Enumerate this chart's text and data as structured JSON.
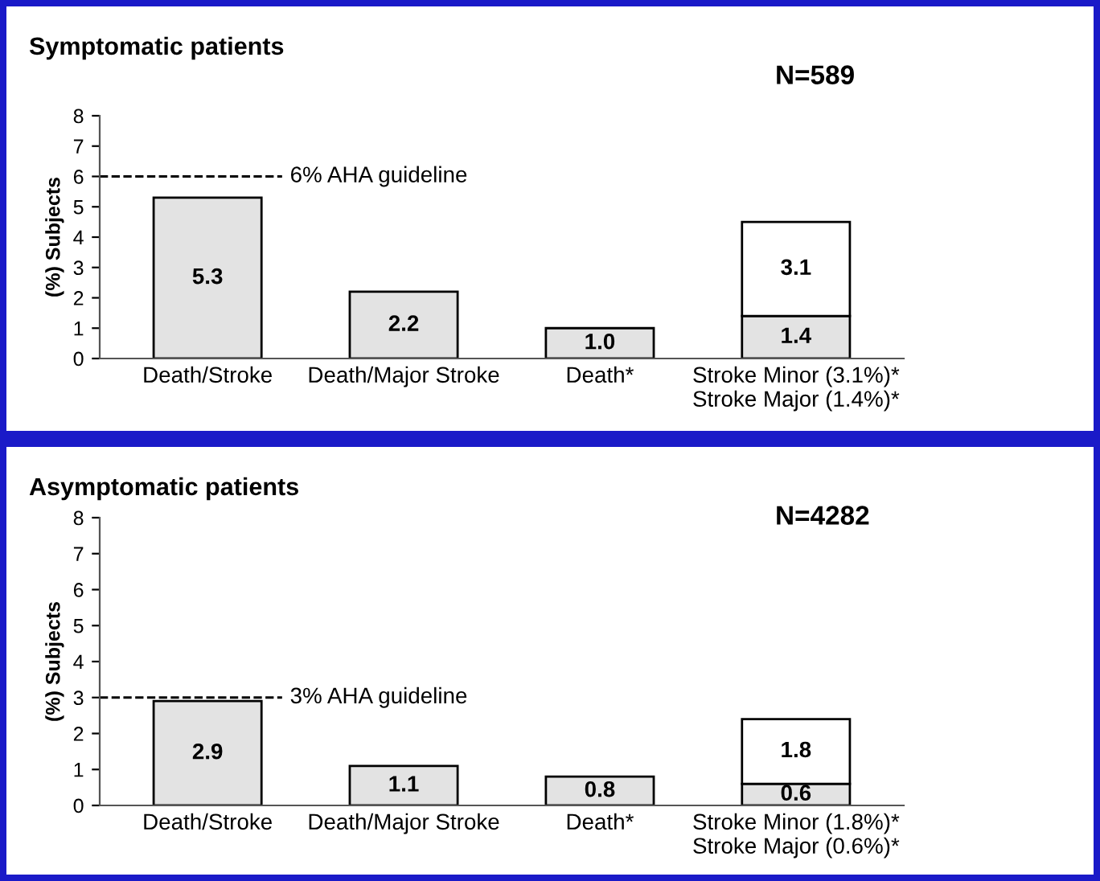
{
  "chart_data": [
    {
      "type": "bar",
      "title": "Symptomatic patients",
      "ylabel": "(%) Subjects",
      "annotations": [
        "N=589"
      ],
      "categories": [
        "Death/Stroke",
        "Death/Major Stroke",
        "Death*",
        "Stroke Minor (3.1%)*\nStroke Major (1.4%)*"
      ],
      "stacked": true,
      "series": [
        {
          "color": "#e3e3e3",
          "values": [
            5.3,
            2.2,
            1.0,
            1.4
          ],
          "value_labels": [
            "5.3",
            "2.2",
            "1.0",
            "1.4"
          ]
        },
        {
          "color": "#ffffff",
          "values": [
            null,
            null,
            null,
            3.1
          ],
          "value_labels": [
            null,
            null,
            null,
            "3.1"
          ]
        }
      ],
      "ylim": [
        0,
        8
      ],
      "yticks": [
        0,
        1,
        2,
        3,
        4,
        5,
        6,
        7,
        8
      ],
      "grid": false,
      "legend": false,
      "ref_lines": [
        {
          "axis": "y",
          "value": 6,
          "label": "6% AHA guideline",
          "line_style": "dashed",
          "color": "#000000"
        }
      ]
    },
    {
      "type": "bar",
      "title": "Asymptomatic patients",
      "ylabel": "(%) Subjects",
      "annotations": [
        "N=4282"
      ],
      "categories": [
        "Death/Stroke",
        "Death/Major Stroke",
        "Death*",
        "Stroke Minor (1.8%)*\nStroke Major (0.6%)*"
      ],
      "stacked": true,
      "series": [
        {
          "color": "#e3e3e3",
          "values": [
            2.9,
            1.1,
            0.8,
            0.6
          ],
          "value_labels": [
            "2.9",
            "1.1",
            "0.8",
            "0.6"
          ]
        },
        {
          "color": "#ffffff",
          "values": [
            null,
            null,
            null,
            1.8
          ],
          "value_labels": [
            null,
            null,
            null,
            "1.8"
          ]
        }
      ],
      "ylim": [
        0,
        8
      ],
      "yticks": [
        0,
        1,
        2,
        3,
        4,
        5,
        6,
        7,
        8
      ],
      "grid": false,
      "legend": false,
      "ref_lines": [
        {
          "axis": "y",
          "value": 3,
          "label": "3% AHA guideline",
          "line_style": "dashed",
          "color": "#000000"
        }
      ]
    }
  ]
}
